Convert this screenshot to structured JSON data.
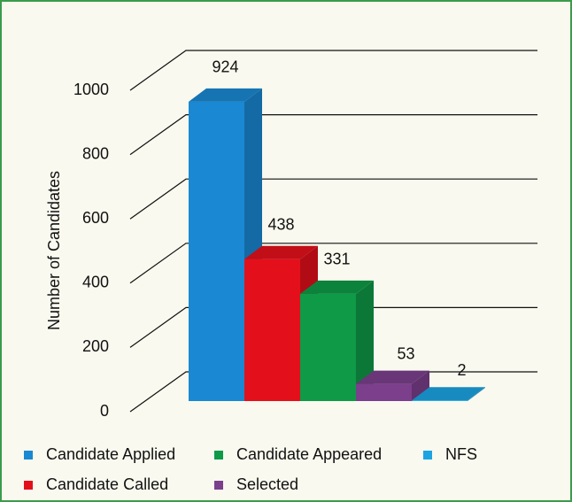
{
  "chart_data": {
    "type": "bar3d",
    "categories": [
      "Candidate Applied",
      "Candidate Called",
      "Candidate Appeared",
      "Selected",
      "NFS"
    ],
    "values": [
      924,
      438,
      331,
      53,
      2
    ],
    "colors": [
      "#1a88d2",
      "#e3101b",
      "#0e9a46",
      "#7b3f8c",
      "#1ba4e2"
    ],
    "ylabel": "Number of Candidates",
    "ylim": [
      0,
      1000
    ],
    "yticks": [
      0,
      200,
      400,
      600,
      800,
      1000
    ],
    "grid": true,
    "legend": "bottom"
  }
}
